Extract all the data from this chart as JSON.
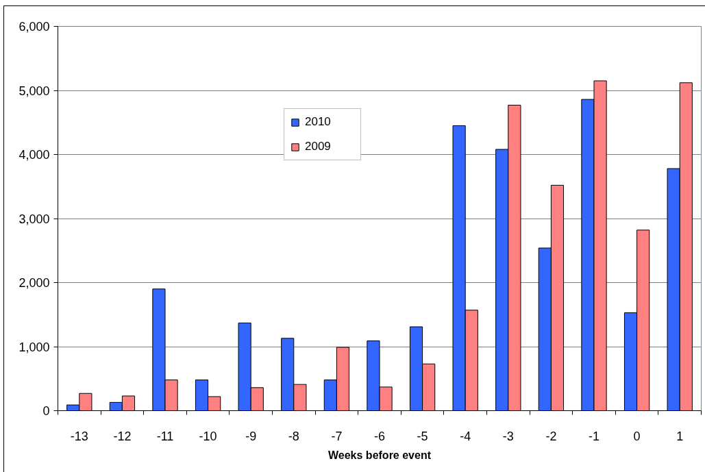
{
  "chart_data": {
    "type": "bar",
    "xlabel": "Weeks before event",
    "categories": [
      "-13",
      "-12",
      "-11",
      "-10",
      "-9",
      "-8",
      "-7",
      "-6",
      "-5",
      "-4",
      "-3",
      "-2",
      "-1",
      "0",
      "1"
    ],
    "series": [
      {
        "name": "2010",
        "color": "#3366ff",
        "values": [
          90,
          130,
          1900,
          480,
          1370,
          1130,
          480,
          1090,
          1310,
          4450,
          4080,
          2540,
          4860,
          1530,
          3780
        ]
      },
      {
        "name": "2009",
        "color": "#ff8080",
        "values": [
          270,
          230,
          480,
          220,
          360,
          410,
          990,
          370,
          730,
          1570,
          4770,
          3520,
          5150,
          2820,
          5120
        ]
      }
    ],
    "ylim": [
      0,
      6000
    ],
    "yticks": [
      0,
      {
        "value": 1000,
        "label": "1,000"
      },
      {
        "value": 2000,
        "label": "2,000"
      },
      {
        "value": 3000,
        "label": "3,000"
      },
      {
        "value": 4000,
        "label": "4,000"
      },
      {
        "value": 5000,
        "label": "5,000"
      },
      {
        "value": 6000,
        "label": "6,000"
      }
    ],
    "grid": "y",
    "legend": "top"
  }
}
